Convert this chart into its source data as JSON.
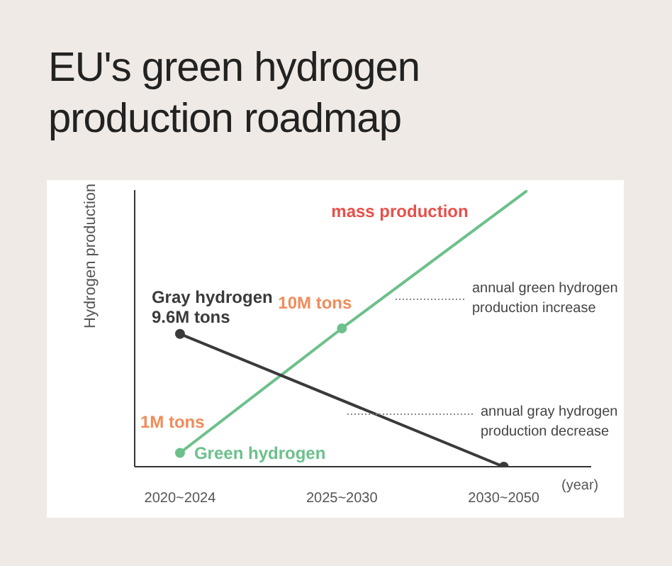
{
  "chart_data": {
    "type": "line",
    "title": "EU's green hydrogen production roadmap",
    "ylabel": "Hydrogen production",
    "xlabel": "(year)",
    "categories": [
      "2020~2024",
      "2025~2030",
      "2030~2050"
    ],
    "marker": "circle",
    "line_style": "solid",
    "tick_labels": "x",
    "series": [
      {
        "name": "Green hydrogen",
        "color": "#6cc08b",
        "values": [
          1,
          10,
          null
        ],
        "value_labels": [
          "1M tons",
          "10M tons",
          null
        ]
      },
      {
        "name": "Gray hydrogen",
        "color": "#3a3a3a",
        "values": [
          9.6,
          null,
          0
        ],
        "value_labels": [
          "9.6M tons",
          null,
          null
        ]
      }
    ],
    "annotations": [
      "mass production",
      "annual green hydrogen production increase",
      "annual gray hydrogen production decrease"
    ]
  }
}
